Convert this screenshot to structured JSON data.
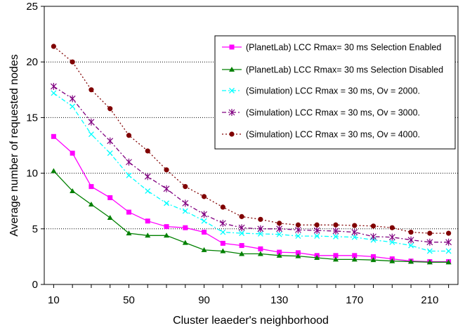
{
  "chart_data": {
    "type": "line",
    "title": "",
    "xlabel": "Cluster leaeder's neighborhood",
    "ylabel": "Average number of requested nodes",
    "xlim": [
      5,
      225
    ],
    "ylim": [
      0,
      25
    ],
    "x_ticks": [
      10,
      50,
      90,
      130,
      170,
      210
    ],
    "y_ticks": [
      0,
      5,
      10,
      15,
      20,
      25
    ],
    "grid": "horizontal dotted",
    "legend_position": "top-right",
    "x": [
      10,
      20,
      30,
      40,
      50,
      60,
      70,
      80,
      90,
      100,
      110,
      120,
      130,
      140,
      150,
      160,
      170,
      180,
      190,
      200,
      210,
      220
    ],
    "series": [
      {
        "name": "(PlanetLab) LCC Rmax= 30 ms Selection Enabled",
        "color": "#ff00ff",
        "dash": "solid",
        "marker": "square",
        "values": [
          13.3,
          11.8,
          8.8,
          7.8,
          6.5,
          5.7,
          5.2,
          5.1,
          4.7,
          3.7,
          3.5,
          3.2,
          2.9,
          2.85,
          2.6,
          2.6,
          2.6,
          2.5,
          2.3,
          2.1,
          2.05,
          2.05
        ]
      },
      {
        "name": "(PlanetLab) LCC Rmax= 30 ms Selection Disabled",
        "color": "#008000",
        "dash": "solid",
        "marker": "triangle",
        "values": [
          10.2,
          8.4,
          7.2,
          6.0,
          4.6,
          4.4,
          4.4,
          3.75,
          3.1,
          3.0,
          2.75,
          2.75,
          2.6,
          2.55,
          2.4,
          2.25,
          2.25,
          2.2,
          2.1,
          2.05,
          2.0,
          2.0
        ]
      },
      {
        "name": "(Simulation) LCC Rmax = 30 ms, Ov = 2000.",
        "color": "#00ffff",
        "dash": "dashdot",
        "marker": "x",
        "values": [
          17.2,
          16.0,
          13.5,
          11.8,
          9.8,
          8.4,
          7.3,
          6.6,
          5.7,
          4.7,
          4.6,
          4.55,
          4.5,
          4.35,
          4.35,
          4.3,
          4.25,
          4.0,
          3.8,
          3.5,
          3.0,
          3.0
        ]
      },
      {
        "name": "(Simulation) LCC Rmax = 30 ms, Ov = 3000.",
        "color": "#800080",
        "dash": "dashdot",
        "marker": "star",
        "values": [
          17.8,
          16.7,
          14.6,
          12.9,
          11.0,
          9.7,
          8.6,
          7.3,
          6.3,
          5.5,
          5.1,
          5.0,
          5.0,
          4.9,
          4.85,
          4.8,
          4.7,
          4.3,
          4.25,
          4.0,
          3.8,
          3.8
        ]
      },
      {
        "name": "(Simulation) LCC Rmax = 30 ms, Ov = 4000.",
        "color": "#800000",
        "dash": "dotted",
        "marker": "circle",
        "values": [
          21.4,
          20.0,
          17.5,
          15.8,
          13.4,
          12.0,
          10.3,
          8.8,
          7.9,
          6.95,
          6.1,
          5.85,
          5.5,
          5.35,
          5.35,
          5.35,
          5.3,
          5.25,
          5.1,
          4.7,
          4.6,
          4.6
        ]
      }
    ]
  }
}
